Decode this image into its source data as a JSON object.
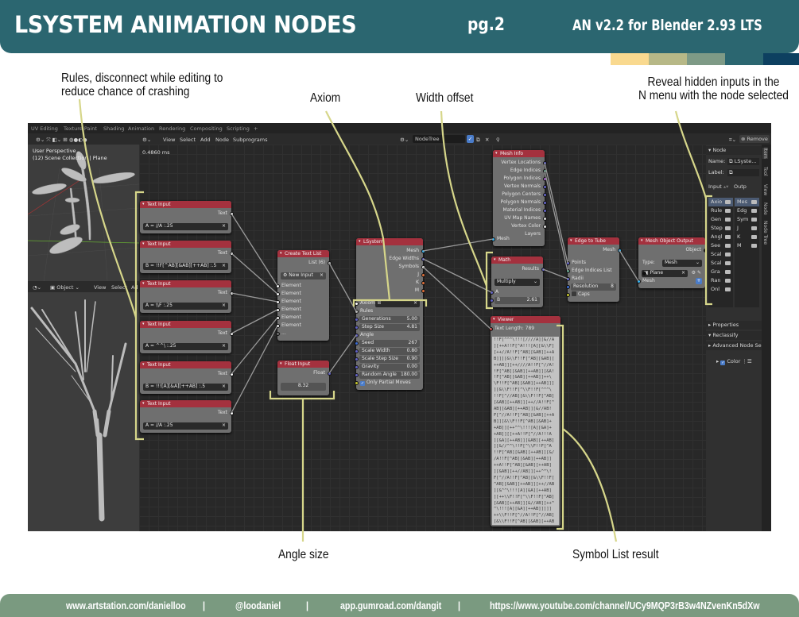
{
  "banner": {
    "title": "LSYSTEM ANIMATION NODES",
    "page": "pg.2",
    "version": "AN v2.2 for Blender 2.93 LTS",
    "swatches": [
      "#f9d98f",
      "#b7b887",
      "#7e9a86",
      "#2b6670",
      "#0d4060"
    ]
  },
  "annotations": {
    "rules": "Rules, disconnect while editing to\nreduce chance of crashing",
    "axiom": "Axiom",
    "width_offset": "Width offset",
    "reveal": "Reveal hidden inputs in the\nN menu with the node selected",
    "angle_size": "Angle size",
    "symbol_list": "Symbol List result"
  },
  "footer": {
    "links": [
      "www.artstation.com/danielloo",
      "@loodaniel",
      "app.gumroad.com/dangit",
      "https://www.youtube.com/channel/UCy9MQP3rB3w4NZvenKn5dXw"
    ],
    "separator": "|"
  },
  "blender": {
    "workspace_tabs": [
      "UV Editing",
      "Texture Paint",
      "Shading",
      "Animation",
      "Rendering",
      "Compositing",
      "Scripting",
      "+"
    ],
    "viewport_top": {
      "line1": "User Perspective",
      "line2": "(12) Scene Collection | Plane"
    },
    "viewport_bottom": {
      "mode": "Object",
      "menus": [
        "View",
        "Select",
        "Ad"
      ]
    },
    "node_editor": {
      "menus": [
        "View",
        "Select",
        "Add",
        "Node",
        "Subprograms"
      ],
      "tree_name": "NodeTree",
      "timing": "0.4860 ms",
      "remove_label": "Remove"
    },
    "npanel": {
      "section": "Node",
      "name_label": "Name:",
      "name_value": "LSyste...",
      "label_label": "Label:",
      "input_header": "Input",
      "output_header": "Outp",
      "inputs": [
        "Axio",
        "Rule",
        "Gen",
        "Step",
        "Angl",
        "See",
        "Scal",
        "Scal",
        "Gra",
        "Ran",
        "Onl"
      ],
      "outputs": [
        "Mes",
        "Edg",
        "Sym",
        "J",
        "K",
        "M"
      ],
      "color_label": "Color",
      "panels": [
        "Properties",
        "Reclassify",
        "Advanced Node Se"
      ],
      "tabs": [
        "Item",
        "Tool",
        "View",
        "Node",
        "Node Tree"
      ]
    },
    "nodes": [
      {
        "title": "Text Input",
        "rows": [
          {
            "t": "out",
            "label": "Text",
            "sock": "#ffffff"
          },
          {
            "t": "fld",
            "value": "A = //A :.25",
            "x": "×"
          }
        ]
      },
      {
        "title": "Text Input",
        "rows": [
          {
            "t": "out",
            "label": "Text",
            "sock": "#ffffff"
          },
          {
            "t": "fld",
            "value": "B = !!F[^AB][&AB][++AB] :.5",
            "x": "×"
          }
        ]
      },
      {
        "title": "Text Input",
        "rows": [
          {
            "t": "out",
            "label": "Text",
            "sock": "#ffffff"
          },
          {
            "t": "fld",
            "value": "A = \\\\F :.25",
            "x": "×"
          }
        ]
      },
      {
        "title": "Text Input",
        "rows": [
          {
            "t": "out",
            "label": "Text",
            "sock": "#ffffff"
          },
          {
            "t": "fld",
            "value": "A = ^^\\ :.25",
            "x": "×"
          }
        ]
      },
      {
        "title": "Text Input",
        "rows": [
          {
            "t": "out",
            "label": "Text",
            "sock": "#ffffff"
          },
          {
            "t": "fld",
            "value": "B = !!![A][&A][++AB] :.5",
            "x": "×"
          }
        ]
      },
      {
        "title": "Text Input",
        "rows": [
          {
            "t": "out",
            "label": "Text",
            "sock": "#ffffff"
          },
          {
            "t": "fld",
            "value": "A = //A :.25",
            "x": "×"
          }
        ]
      },
      {
        "title": "Create Text List",
        "rows": [
          {
            "t": "out",
            "label": "List (6)",
            "sock": "#bbbbbb"
          },
          {
            "t": "btn",
            "label": "New Input",
            "x": "×"
          },
          {
            "t": "in",
            "label": "Element",
            "sock": "#ffffff"
          },
          {
            "t": "in",
            "label": "Element",
            "sock": "#ffffff"
          },
          {
            "t": "in",
            "label": "Element",
            "sock": "#ffffff"
          },
          {
            "t": "in",
            "label": "Element",
            "sock": "#ffffff"
          },
          {
            "t": "in",
            "label": "Element",
            "sock": "#ffffff"
          },
          {
            "t": "in",
            "label": "Element",
            "sock": "#ffffff"
          },
          {
            "t": "in",
            "label": "...",
            "sock": "#6f6f6f"
          }
        ]
      },
      {
        "title": "Float Input",
        "rows": [
          {
            "t": "out",
            "label": "Float",
            "sock": "#6363c7"
          },
          {
            "t": "num",
            "value": "8.32"
          }
        ]
      },
      {
        "title": "LSystem",
        "rows": [
          {
            "t": "out",
            "label": "Mesh",
            "sock": "#33b5f5"
          },
          {
            "t": "out",
            "label": "Edge Widths",
            "sock": "#6363c7"
          },
          {
            "t": "out",
            "label": "Symbols",
            "sock": "#ffffff"
          },
          {
            "t": "out",
            "label": "J",
            "sock": "#e0703a"
          },
          {
            "t": "out",
            "label": "K",
            "sock": "#e0703a"
          },
          {
            "t": "out",
            "label": "M",
            "sock": "#e0703a"
          },
          {
            "t": "fld",
            "label": "Axiom",
            "value": "B",
            "x": "×",
            "sock": "#ffffff"
          },
          {
            "t": "in",
            "label": "Rules",
            "sock": "#bbbbbb"
          },
          {
            "t": "prop",
            "label": "Generations",
            "value": "5.00",
            "sock": "#6363c7"
          },
          {
            "t": "prop",
            "label": "Step Size",
            "value": "4.81",
            "sock": "#6363c7"
          },
          {
            "t": "in",
            "label": "Angle",
            "sock": "#6363c7"
          },
          {
            "t": "prop",
            "label": "Seed",
            "value": "267",
            "sock": "#3b6ed8"
          },
          {
            "t": "prop",
            "label": "Scale Width",
            "value": "0.80",
            "sock": "#6363c7"
          },
          {
            "t": "prop",
            "label": "Scale Step Size",
            "value": "0.90",
            "sock": "#6363c7"
          },
          {
            "t": "prop",
            "label": "Gravity",
            "value": "0.00",
            "sock": "#6363c7"
          },
          {
            "t": "prop",
            "label": "Random Angle",
            "value": "180.00",
            "sock": "#6363c7"
          },
          {
            "t": "chk",
            "label": "Only Partial Moves",
            "checked": true,
            "sock": "#c7c729"
          }
        ]
      },
      {
        "title": "Mesh Info",
        "rows": [
          {
            "t": "out",
            "label": "Vertex Locations",
            "sock": "#6363c7"
          },
          {
            "t": "out",
            "label": "Edge Indices",
            "sock": "#5fa087"
          },
          {
            "t": "out",
            "label": "Polygon Indices",
            "sock": "#a060c0"
          },
          {
            "t": "out",
            "label": "Vertex Normals",
            "sock": "#6363c7"
          },
          {
            "t": "out",
            "label": "Polygon Centers",
            "sock": "#6363c7"
          },
          {
            "t": "out",
            "label": "Polygon Normals",
            "sock": "#6363c7"
          },
          {
            "t": "out",
            "label": "Material Indices",
            "sock": "#6363c7"
          },
          {
            "t": "out",
            "label": "UV Map Names",
            "sock": "#dddddd"
          },
          {
            "t": "out",
            "label": "Vertex Color Layers",
            "sock": "#dddddd"
          },
          {
            "t": "in",
            "label": "Mesh",
            "sock": "#33b5f5"
          }
        ]
      },
      {
        "title": "Math",
        "rows": [
          {
            "t": "out",
            "label": "Results",
            "sock": "#6363c7"
          },
          {
            "t": "dd",
            "value": "Multiply"
          },
          {
            "t": "in",
            "label": "A",
            "sock": "#6363c7"
          },
          {
            "t": "prop",
            "label": "B",
            "value": "2.61",
            "sock": "#6363c7"
          }
        ]
      },
      {
        "title": "Viewer",
        "rows": [
          {
            "t": "in",
            "label": "Text Length: 789",
            "sock": "#c44040"
          }
        ],
        "text": "!!F[^^^\\!!![////A][&//A\n][++A!!F[^A!!![A][&\\\\F]\n[++//A!!F[^AB][&AB]]++A\nB]]][&\\\\F!!F[^AB][&AB][\n++AB]][++////A!!F[^//A!\n!F[^AB][&AB][++AB]][&A!\n!F[^AB][&AB][++AB]]++\\\n\\F!!F[^AB][&AB][++AB]]]\n][&\\\\F!!F[^\\\\F!!F[^^^\\\n!!F[^//AB][&\\\\F!!F[^AB]\n[&AB][++AB]][++//A!!F[^\nAB][&AB][++AB]][&//AB!\nF[^//A!!F[^AB][&AB][++A\nB]][&\\\\F!!F[^AB][&AB]+\n+AB]][++^^\\!!![A][&A]+\n+AB]][[++A!!F[^//A!!!A\n][&A][++AB]][&AB][++AB]\n][&//^^\\!!F[^\\\\F!!F[^A\n!!F[^AB][&AB][++AB]][&/\n/A!!F[^AB][&AB][++AB]]\n++A!!F[^AB][&AB][++AB]\n][&AB][++//AB]][++^^\\!\nF[^//A!!F[^AB][&\\\\F!!F[\n^AB][&AB][++AB]][++//AB\n][&^^\\!!![A][&A][++AB]\n][++\\\\F!!F[^\\\\F!!F[^AB]\n[&AB][++AB]][&//AB][++^\n^\\!!![A][&A][++AB]]]]]\n++\\\\F!!F[^//A!!F[^//AB]\n[&\\\\F!!F[^AB][&AB][++AB\n]][++AB]][&////A!!F[^AB\n][&AB][++AB]][++^^\\\\!!F[\n^A!!F[^AB][&AB][++AB]]\n&AB][++A!!F[^AB][&AB][+\n+AB]]]]"
      },
      {
        "title": "Edge to Tube",
        "rows": [
          {
            "t": "out",
            "label": "Mesh",
            "sock": "#33b5f5"
          },
          {
            "t": "in",
            "label": "Points",
            "sock": "#6363c7"
          },
          {
            "t": "in",
            "label": "Edge Indices List",
            "sock": "#5fa087"
          },
          {
            "t": "in",
            "label": "Radii",
            "sock": "#6363c7"
          },
          {
            "t": "prop",
            "label": "Resolution",
            "value": "8",
            "sock": "#3b6ed8"
          },
          {
            "t": "chk",
            "label": "Caps",
            "checked": false,
            "sock": "#c7c729"
          }
        ]
      },
      {
        "title": "Mesh Object Output",
        "rows": [
          {
            "t": "out",
            "label": "Object",
            "sock": "#111111"
          },
          {
            "t": "dd",
            "label": "Type:",
            "value": "Mesh"
          },
          {
            "t": "obj",
            "value": "Plane",
            "x": "×",
            "sock": "#111111"
          },
          {
            "t": "in",
            "label": "Mesh",
            "sock": "#33b5f5"
          }
        ]
      }
    ]
  },
  "colors": {
    "banner": "#2b6670",
    "footer": "#7a9a80",
    "node_header": "#a4313e",
    "annotation_line": "#d6d68a"
  }
}
